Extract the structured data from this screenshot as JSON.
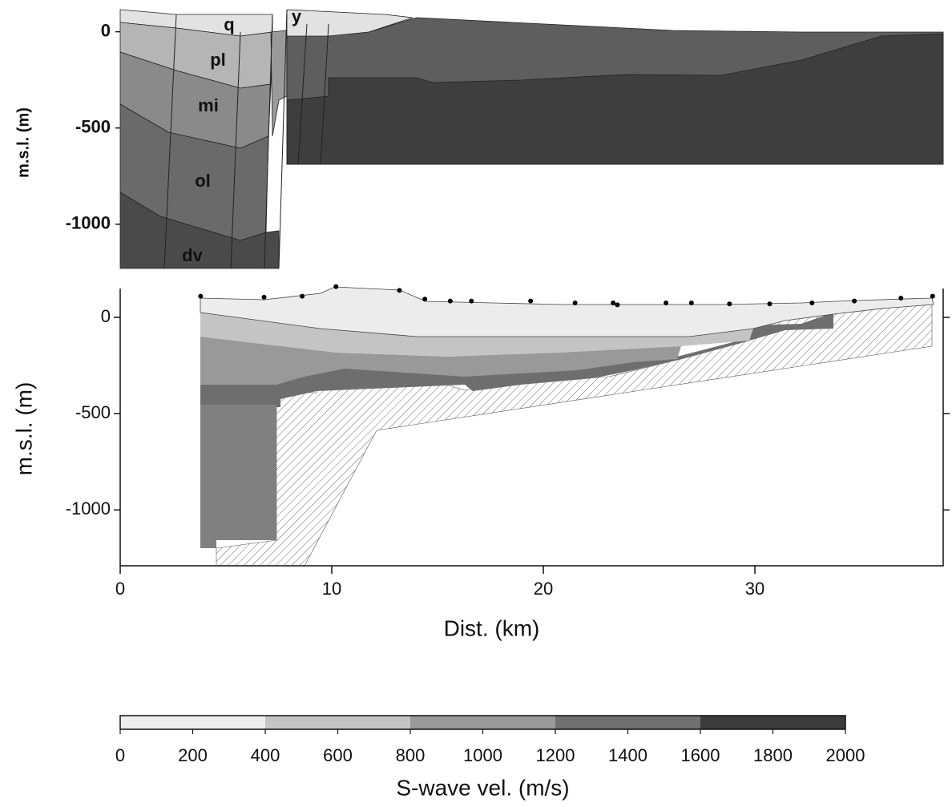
{
  "chart_data": [
    {
      "type": "section",
      "ylabel": "m.s.l. (m)",
      "ylim": [
        -1230,
        115
      ],
      "yticks": [
        0,
        -500,
        -1000
      ],
      "annotations": [
        "q",
        "y",
        "pl",
        "mi",
        "ol",
        "dv"
      ]
    },
    {
      "type": "section",
      "xlabel": "Dist. (km)",
      "ylabel": "m.s.l. (m)",
      "xlim": [
        0,
        38.9
      ],
      "ylim": [
        -1290,
        150
      ],
      "xticks": [
        0,
        10,
        20,
        30
      ],
      "yticks": [
        0,
        -500,
        -1000
      ],
      "stations": {
        "color": "#000000",
        "x": [
          3.8,
          6.8,
          8.6,
          10.2,
          13.2,
          14.4,
          15.6,
          16.6,
          19.4,
          21.5,
          23.3,
          23.5,
          25.8,
          27.0,
          28.8,
          30.7,
          32.7,
          34.7,
          36.9,
          38.4
        ],
        "y": [
          110,
          105,
          110,
          160,
          140,
          95,
          85,
          85,
          85,
          75,
          75,
          65,
          75,
          75,
          70,
          70,
          75,
          85,
          100,
          110
        ]
      }
    },
    {
      "type": "colorbar",
      "xlabel": "S-wave vel. (m/s)",
      "xlim": [
        0,
        2000
      ],
      "xticks": [
        0,
        200,
        400,
        600,
        800,
        1000,
        1200,
        1400,
        1600,
        1800,
        2000
      ],
      "bins": [
        0,
        400,
        800,
        1200,
        1600,
        2000
      ],
      "colors": [
        "#eeeeee",
        "#c4c4c4",
        "#9a9a9a",
        "#707070",
        "#3c3c3c"
      ]
    }
  ]
}
